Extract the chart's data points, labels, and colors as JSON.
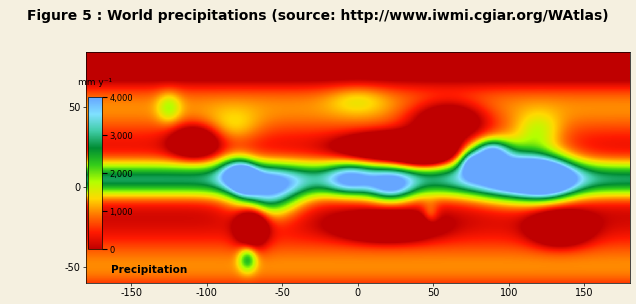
{
  "title": "Figure 5 : World precipitations (source: http://www.iwmi.cgiar.org/WAtlas)",
  "title_fontsize": 10,
  "title_fontweight": "bold",
  "xlim": [
    -180,
    180
  ],
  "ylim": [
    -60,
    85
  ],
  "xticks": [
    -150,
    -100,
    -50,
    0,
    50,
    100,
    150
  ],
  "yticks": [
    -50,
    0,
    50
  ],
  "colorbar_label": "mm y⁻¹",
  "colorbar_ticks": [
    0,
    1000,
    2000,
    3000,
    4000
  ],
  "colorbar_ticklabels": [
    "0",
    "1,000",
    "2,000",
    "3,000",
    "4,000"
  ],
  "legend_label": "Precipitation",
  "background_color": "#f5f0e0",
  "map_background": "#c8ddf0",
  "vmin": 0,
  "vmax": 4000,
  "figsize": [
    6.36,
    3.04
  ],
  "dpi": 100
}
